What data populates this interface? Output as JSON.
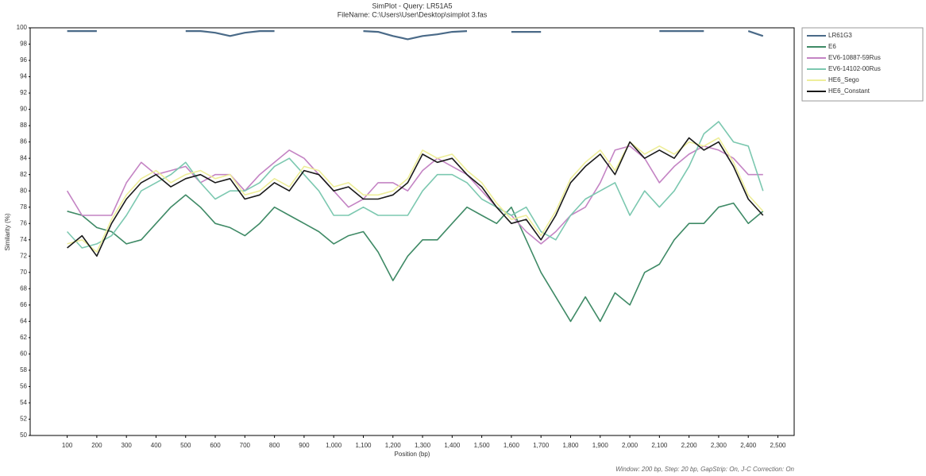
{
  "chart_data": {
    "type": "line",
    "title": "SimPlot - Query: LR51A5",
    "subtitle": "FileName: C:\\Users\\User\\Desktop\\simplot 3.fas",
    "x_label": "Position (bp)",
    "y_label": "Similarity (%)",
    "annotation": "Window: 200 bp, Step: 20 bp, GapStrip: On, J-C Correction: On",
    "x": [
      100,
      150,
      200,
      250,
      300,
      350,
      400,
      450,
      500,
      550,
      600,
      650,
      700,
      750,
      800,
      850,
      900,
      950,
      1000,
      1050,
      1100,
      1150,
      1200,
      1250,
      1300,
      1350,
      1400,
      1450,
      1500,
      1550,
      1600,
      1650,
      1700,
      1750,
      1800,
      1850,
      1900,
      1950,
      2000,
      2050,
      2100,
      2150,
      2200,
      2250,
      2300,
      2350,
      2400,
      2450
    ],
    "xlim": [
      -25,
      2555
    ],
    "xticks": [
      100,
      200,
      300,
      400,
      500,
      600,
      700,
      800,
      900,
      {
        "value": 1000,
        "label": "1,000"
      },
      {
        "value": 1100,
        "label": "1,100"
      },
      {
        "value": 1200,
        "label": "1,200"
      },
      {
        "value": 1300,
        "label": "1,300"
      },
      {
        "value": 1400,
        "label": "1,400"
      },
      {
        "value": 1500,
        "label": "1,500"
      },
      {
        "value": 1600,
        "label": "1,600"
      },
      {
        "value": 1700,
        "label": "1,700"
      },
      {
        "value": 1800,
        "label": "1,800"
      },
      {
        "value": 1900,
        "label": "1,900"
      },
      {
        "value": 2000,
        "label": "2,000"
      },
      {
        "value": 2100,
        "label": "2,100"
      },
      {
        "value": 2200,
        "label": "2,200"
      },
      {
        "value": 2300,
        "label": "2,300"
      },
      {
        "value": 2400,
        "label": "2,400"
      },
      {
        "value": 2500,
        "label": "2,500"
      }
    ],
    "ylim": [
      50,
      100
    ],
    "yticks": [
      50,
      52,
      54,
      56,
      58,
      60,
      62,
      64,
      66,
      68,
      70,
      72,
      74,
      76,
      78,
      80,
      82,
      84,
      86,
      88,
      90,
      92,
      94,
      96,
      98,
      100
    ],
    "grid": false,
    "legend": "right",
    "series": [
      {
        "name": "LR61G3",
        "color": "#4a6a88",
        "values": [
          99.6,
          99.6,
          99.6,
          null,
          null,
          null,
          null,
          null,
          99.6,
          99.6,
          99.4,
          99,
          99.4,
          99.6,
          99.6,
          null,
          null,
          null,
          null,
          null,
          99.6,
          99.5,
          99,
          98.6,
          99,
          99.2,
          99.5,
          99.6,
          null,
          null,
          99.5,
          99.5,
          99.5,
          null,
          null,
          null,
          null,
          null,
          null,
          null,
          99.6,
          99.6,
          99.6,
          99.6,
          null,
          null,
          99.6,
          99
        ]
      },
      {
        "name": "E6",
        "color": "#3f8a66",
        "values": [
          77.5,
          77,
          75.5,
          75,
          73.5,
          74,
          76,
          78,
          79.5,
          78,
          76,
          75.5,
          74.5,
          76,
          78,
          77,
          76,
          75,
          73.5,
          74.5,
          75,
          72.5,
          69,
          72,
          74,
          74,
          76,
          78,
          77,
          76,
          78,
          74,
          70,
          67,
          64,
          67,
          64,
          67.5,
          66,
          70,
          71,
          74,
          76,
          76,
          78,
          78.5,
          76,
          77.5
        ]
      },
      {
        "name": "EV6-10887-59Rus",
        "color": "#c484c4",
        "values": [
          80,
          77,
          77,
          77,
          81,
          83.5,
          82,
          82.5,
          83,
          81,
          82,
          82,
          80,
          82,
          83.5,
          85,
          84,
          82,
          80,
          78,
          79,
          81,
          81,
          80,
          82.5,
          84,
          83,
          82,
          80,
          78,
          77,
          75,
          73.5,
          75,
          77,
          78,
          81,
          85,
          85.5,
          84,
          81,
          83,
          84.5,
          85.5,
          85,
          84,
          82,
          82
        ]
      },
      {
        "name": "EV6-14102-00Rus",
        "color": "#7cc8b0",
        "values": [
          75,
          73,
          73.5,
          74.5,
          77,
          80,
          81,
          82,
          83.5,
          81,
          79,
          80,
          80,
          81,
          83,
          84,
          82,
          80,
          77,
          77,
          78,
          77,
          77,
          77,
          80,
          82,
          82,
          81,
          79,
          78,
          77,
          78,
          75,
          74,
          77,
          79,
          80,
          81,
          77,
          80,
          78,
          80,
          83,
          87,
          88.5,
          86,
          85.5,
          80
        ]
      },
      {
        "name": "HE6_Sego",
        "color": "#eeee9a",
        "values": [
          73.5,
          74,
          72.5,
          76.5,
          79.5,
          81.5,
          82.5,
          81,
          82,
          82.5,
          81.5,
          82,
          79.5,
          80,
          81.5,
          80.5,
          83,
          82.5,
          80.5,
          81,
          79.5,
          79.5,
          80,
          81.5,
          85,
          84,
          84.5,
          82.5,
          81,
          78.5,
          76.5,
          77,
          74.5,
          77.5,
          81.5,
          83.5,
          85,
          82.5,
          86,
          84.5,
          85.5,
          84.5,
          86,
          85.5,
          86.5,
          83.5,
          79.5,
          77.5
        ]
      },
      {
        "name": "HE6_Constant",
        "color": "#1a1a1a",
        "values": [
          73,
          74.5,
          72,
          76,
          79,
          81,
          82,
          80.5,
          81.5,
          82,
          81,
          81.5,
          79,
          79.5,
          81,
          80,
          82.5,
          82,
          80,
          80.5,
          79,
          79,
          79.5,
          81,
          84.5,
          83.5,
          84,
          82,
          80.5,
          78,
          76,
          76.5,
          74,
          77,
          81,
          83,
          84.5,
          82,
          86,
          84,
          85,
          84,
          86.5,
          85,
          86,
          83,
          79,
          77
        ]
      }
    ]
  }
}
